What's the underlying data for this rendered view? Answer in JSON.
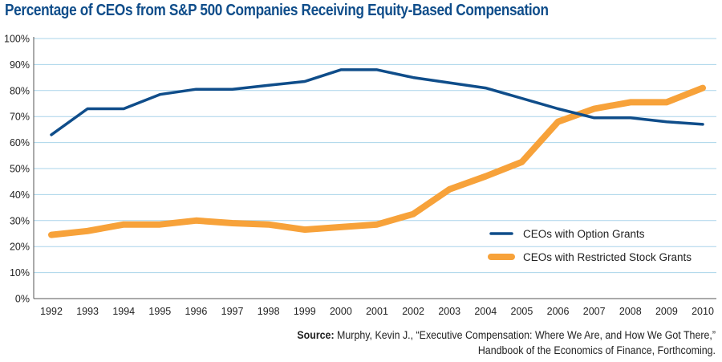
{
  "chart_data": {
    "type": "line",
    "title": "Percentage of CEOs from S&P 500 Companies Receiving Equity-Based Compensation",
    "xlabel": "",
    "ylabel": "",
    "x": [
      "1992",
      "1993",
      "1994",
      "1995",
      "1996",
      "1997",
      "1998",
      "1999",
      "2000",
      "2001",
      "2002",
      "2003",
      "2004",
      "2005",
      "2006",
      "2007",
      "2008",
      "2009",
      "2010"
    ],
    "ylim": [
      0,
      100
    ],
    "y_ticks": [
      "0%",
      "10%",
      "20%",
      "30%",
      "40%",
      "50%",
      "60%",
      "70%",
      "80%",
      "90%",
      "100%"
    ],
    "grid": true,
    "legend_position": "right",
    "series": [
      {
        "name": "CEOs with Option Grants",
        "color": "#0f4d8a",
        "values": [
          63,
          73,
          73,
          78.5,
          80.5,
          80.5,
          82,
          83.5,
          88,
          88,
          85,
          83,
          81,
          77,
          73,
          69.5,
          69.5,
          68,
          67
        ]
      },
      {
        "name": "CEOs with Restricted Stock Grants",
        "color": "#f7a23a",
        "values": [
          24.5,
          26,
          28.5,
          28.5,
          30,
          29,
          28.5,
          26.5,
          27.5,
          28.5,
          32.5,
          42,
          47,
          52.5,
          68,
          73,
          75.5,
          75.5,
          81
        ]
      }
    ]
  },
  "source": {
    "label": "Source:",
    "line1": " Murphy, Kevin J., “Executive Compensation: Where We Are, and How We Got There,”",
    "line2": "Handbook of the Economics of Finance, Forthcoming."
  }
}
